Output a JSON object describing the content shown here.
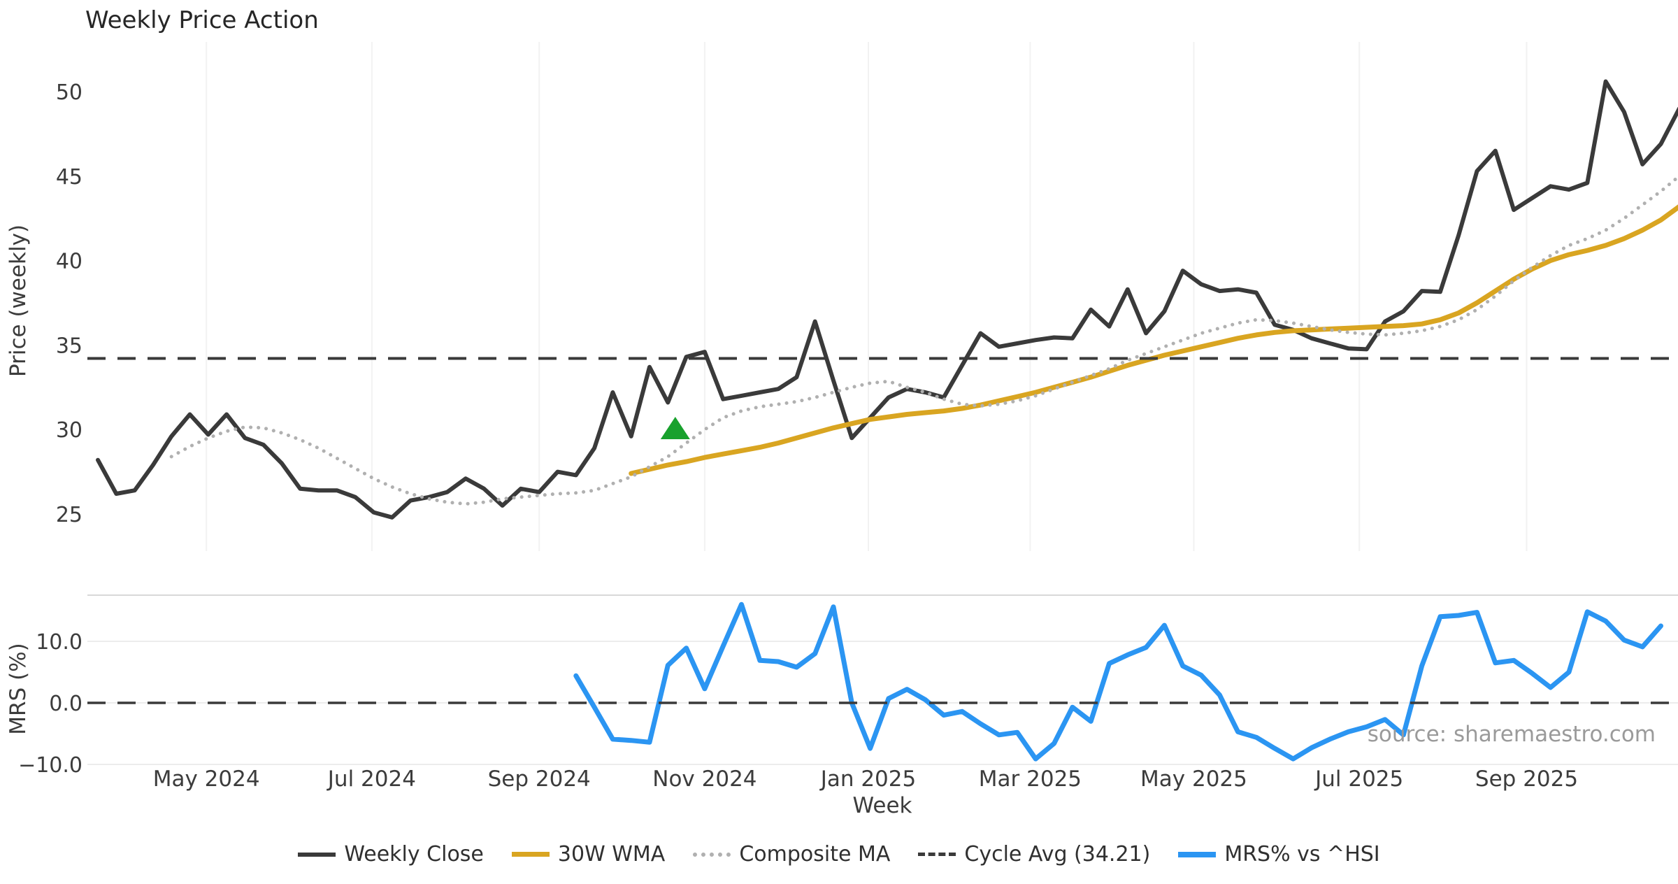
{
  "title": "Weekly Price Action",
  "source_note": "source: sharemaestro.com",
  "colors": {
    "weekly_close": "#3a3a3a",
    "wma_30w": "#d9a521",
    "composite_ma": "#b0b0b0",
    "cycle_avg": "#3a3a3a",
    "mrs": "#2b95f2",
    "marker_green": "#18a12d",
    "grid_vertical": "#f2f2f2",
    "grid_horizontal": "#ececec",
    "panel_spine": "#d8d8d8",
    "tick_text": "#3c3c3c",
    "title_text": "#262626",
    "source_text": "#9a9a9a"
  },
  "axes": {
    "price": {
      "label": "Price (weekly)",
      "ticks": [
        "25",
        "30",
        "35",
        "40",
        "45",
        "50"
      ],
      "tick_values": [
        25,
        30,
        35,
        40,
        45,
        50
      ]
    },
    "mrs": {
      "label": "MRS (%)",
      "ticks": [
        "−10.0",
        "0.0",
        "10.0"
      ],
      "tick_values": [
        -10,
        0,
        10
      ]
    },
    "x": {
      "label": "Week",
      "months": [
        {
          "label": "May 2024",
          "week_index": 5.9
        },
        {
          "label": "Jul 2024",
          "week_index": 14.9
        },
        {
          "label": "Sep 2024",
          "week_index": 24.0
        },
        {
          "label": "Nov 2024",
          "week_index": 33.0
        },
        {
          "label": "Jan 2025",
          "week_index": 41.9
        },
        {
          "label": "Mar 2025",
          "week_index": 50.7
        },
        {
          "label": "May 2025",
          "week_index": 59.6
        },
        {
          "label": "Jul 2025",
          "week_index": 68.6
        },
        {
          "label": "Sep 2025",
          "week_index": 77.7
        }
      ]
    }
  },
  "legend": [
    {
      "label": "Weekly Close",
      "swatch": "solid-dark"
    },
    {
      "label": "30W WMA",
      "swatch": "solid-gold"
    },
    {
      "label": "Composite MA",
      "swatch": "dotted-gray"
    },
    {
      "label": "Cycle Avg (34.21)",
      "swatch": "dashed-dark"
    },
    {
      "label": "MRS% vs ^HSI",
      "swatch": "solid-blue"
    }
  ],
  "marker": {
    "name": "green-up-triangle",
    "week_index": 31.4,
    "price": 30.05
  },
  "chart_data": {
    "type": "line",
    "x_unit": "week_index",
    "weeks_total": 87,
    "panels": [
      {
        "name": "price",
        "ylabel": "Price (weekly)",
        "ylim": [
          23.0,
          52.9
        ],
        "yticks": [
          25,
          30,
          35,
          40,
          45,
          50
        ],
        "grid": "vertical-months"
      },
      {
        "name": "mrs",
        "ylabel": "MRS (%)",
        "ylim": [
          -13.0,
          17.5
        ],
        "yticks": [
          -10,
          0,
          10
        ],
        "grid": "horizontal"
      }
    ],
    "series": [
      {
        "name": "Weekly Close",
        "panel": "price",
        "style": "solid",
        "color": "#3a3a3a",
        "width": 6,
        "start_index": 0,
        "values": [
          28.2,
          26.2,
          26.4,
          27.9,
          29.6,
          30.9,
          29.7,
          30.9,
          29.5,
          29.1,
          28.0,
          26.5,
          26.4,
          26.4,
          26.0,
          25.1,
          24.8,
          25.8,
          26.0,
          26.3,
          27.1,
          26.5,
          25.5,
          26.5,
          26.3,
          27.5,
          27.3,
          28.9,
          32.2,
          29.6,
          33.7,
          31.6,
          34.3,
          34.6,
          31.8,
          32.0,
          32.2,
          32.4,
          33.1,
          36.4,
          32.9,
          29.5,
          30.7,
          31.9,
          32.4,
          32.2,
          31.9,
          33.8,
          35.7,
          34.9,
          35.1,
          35.3,
          35.45,
          35.4,
          37.1,
          36.1,
          38.3,
          35.7,
          37.0,
          39.4,
          38.6,
          38.2,
          38.3,
          38.1,
          36.2,
          35.9,
          35.4,
          35.1,
          34.8,
          34.75,
          36.4,
          37.0,
          38.2,
          38.15,
          41.5,
          45.3,
          46.5,
          43.0,
          43.7,
          44.4,
          44.2,
          44.6,
          50.6,
          48.8,
          45.7,
          46.9,
          49.0
        ]
      },
      {
        "name": "30W WMA",
        "panel": "price",
        "style": "solid",
        "color": "#d9a521",
        "width": 7,
        "start_index": 29,
        "values": [
          27.4,
          27.65,
          27.9,
          28.1,
          28.35,
          28.55,
          28.75,
          28.95,
          29.2,
          29.5,
          29.8,
          30.1,
          30.35,
          30.6,
          30.75,
          30.9,
          31.0,
          31.1,
          31.25,
          31.45,
          31.7,
          31.95,
          32.2,
          32.5,
          32.8,
          33.1,
          33.45,
          33.8,
          34.1,
          34.4,
          34.65,
          34.9,
          35.15,
          35.4,
          35.6,
          35.75,
          35.85,
          35.9,
          35.95,
          36.0,
          36.05,
          36.1,
          36.15,
          36.25,
          36.5,
          36.9,
          37.5,
          38.2,
          38.9,
          39.5,
          40.0,
          40.35,
          40.6,
          40.9,
          41.3,
          41.8,
          42.4,
          43.2
        ]
      },
      {
        "name": "Composite MA",
        "panel": "price",
        "style": "dotted",
        "color": "#b0b0b0",
        "width": 5,
        "start_index": 4,
        "values": [
          28.4,
          29.0,
          29.5,
          29.9,
          30.15,
          30.1,
          29.8,
          29.4,
          28.9,
          28.3,
          27.7,
          27.1,
          26.6,
          26.2,
          25.9,
          25.7,
          25.6,
          25.7,
          25.9,
          26.0,
          26.1,
          26.2,
          26.25,
          26.4,
          26.8,
          27.2,
          27.8,
          28.4,
          29.2,
          30.0,
          30.7,
          31.1,
          31.35,
          31.5,
          31.65,
          31.9,
          32.2,
          32.5,
          32.75,
          32.85,
          32.5,
          32.2,
          31.8,
          31.5,
          31.4,
          31.5,
          31.7,
          32.0,
          32.4,
          32.8,
          33.2,
          33.6,
          34.1,
          34.5,
          34.9,
          35.3,
          35.7,
          36.0,
          36.3,
          36.5,
          36.45,
          36.3,
          36.1,
          35.9,
          35.75,
          35.65,
          35.6,
          35.7,
          35.85,
          36.1,
          36.5,
          37.1,
          37.9,
          38.8,
          39.6,
          40.3,
          40.9,
          41.3,
          41.8,
          42.5,
          43.3,
          44.1,
          45.0
        ]
      },
      {
        "name": "Cycle Avg (34.21)",
        "panel": "price",
        "style": "dashed",
        "color": "#3a3a3a",
        "width": 4,
        "type": "hline",
        "value": 34.21
      },
      {
        "name": "MRS% vs ^HSI",
        "panel": "mrs",
        "style": "solid",
        "color": "#2b95f2",
        "width": 7,
        "start_index": 26,
        "values": [
          4.4,
          -0.7,
          -5.9,
          -6.1,
          -6.4,
          6.1,
          8.9,
          2.3,
          9.2,
          16.0,
          6.9,
          6.7,
          5.8,
          8.0,
          15.6,
          0.0,
          -7.4,
          0.7,
          2.2,
          0.5,
          -2.0,
          -1.4,
          -3.4,
          -5.2,
          -4.8,
          -9.1,
          -6.6,
          -0.7,
          -3.0,
          6.4,
          7.8,
          9.0,
          12.6,
          6.0,
          4.5,
          1.3,
          -4.7,
          -5.6,
          -7.4,
          -9.1,
          -7.3,
          -5.9,
          -4.7,
          -3.9,
          -2.7,
          -5.2,
          6.0,
          14.0,
          14.2,
          14.7,
          6.5,
          6.9,
          4.8,
          2.5,
          5.0,
          14.8,
          13.3,
          10.2,
          9.1,
          12.5
        ]
      },
      {
        "name": "MRS zero reference",
        "panel": "mrs",
        "style": "dashed",
        "color": "#3a3a3a",
        "width": 3.5,
        "type": "hline",
        "value": 0
      }
    ]
  }
}
